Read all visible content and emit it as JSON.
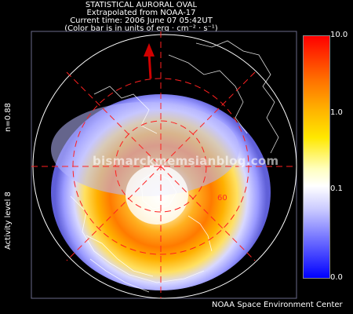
{
  "header": {
    "line1": "STATISTICAL AURORAL OVAL",
    "line2": "Extrapolated from NOAA-17",
    "line3": "Current time: 2006 June 07 05:42UT",
    "line4": "(Color bar is in units of erg · cm⁻² · s⁻¹)"
  },
  "colorbar": {
    "ticks": [
      "10.0",
      "1.0",
      "0.1",
      "0.0"
    ],
    "colors": {
      "max": "#ff0000",
      "mid": "#ffd000",
      "white": "#ffffff",
      "min": "#0000ff"
    }
  },
  "side_labels": {
    "n_value": "n=0.88",
    "activity": "Activity level 8"
  },
  "map": {
    "latitude_label": "60",
    "sun_arrow": "sun-direction-arrow",
    "grid_color": "#ff2020"
  },
  "footer": "NOAA Space Environment Center",
  "watermark": "bismarckmemsianblog.com"
}
